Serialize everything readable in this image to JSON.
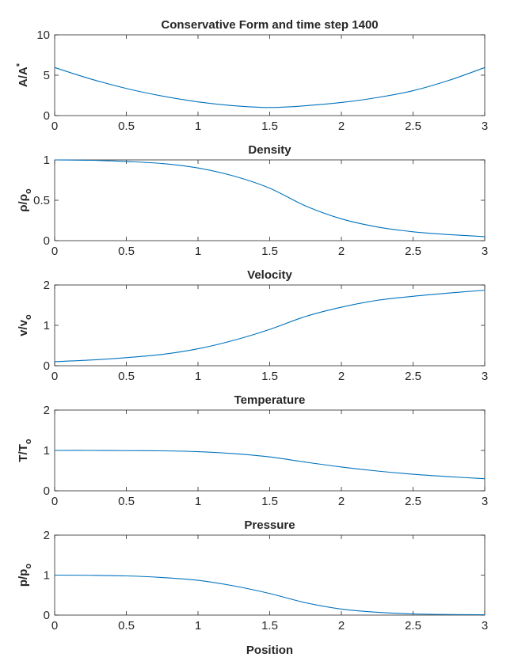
{
  "figure": {
    "line_color": "#0072BD",
    "axis_color": "#262626"
  },
  "chart_data": [
    {
      "type": "line",
      "title": "Conservative Form and time step 1400",
      "ylabel_main": "A/A",
      "ylabel_sup": "*",
      "ylabel_sub": "",
      "xlabel": "",
      "xlim": [
        0,
        3
      ],
      "ylim": [
        0,
        10
      ],
      "xticks": [
        "0",
        "0.5",
        "1",
        "1.5",
        "2",
        "2.5",
        "3"
      ],
      "yticks": [
        "0",
        "5",
        "10"
      ],
      "x": [
        0,
        0.25,
        0.5,
        0.75,
        1,
        1.25,
        1.5,
        1.75,
        2,
        2.25,
        2.5,
        2.75,
        3
      ],
      "series": [
        {
          "values": [
            5.95,
            4.54,
            3.36,
            2.42,
            1.7,
            1.22,
            1.0,
            1.22,
            1.62,
            2.23,
            3.08,
            4.36,
            5.95
          ]
        }
      ]
    },
    {
      "type": "line",
      "title": "Density",
      "ylabel_main": "ρ/ρ",
      "ylabel_sup": "",
      "ylabel_sub": "o",
      "xlabel": "",
      "xlim": [
        0,
        3
      ],
      "ylim": [
        0,
        1
      ],
      "xticks": [
        "0",
        "0.5",
        "1",
        "1.5",
        "2",
        "2.5",
        "3"
      ],
      "yticks": [
        "0",
        "0.5",
        "1"
      ],
      "x": [
        0,
        0.25,
        0.5,
        0.75,
        1,
        1.25,
        1.5,
        1.75,
        2,
        2.25,
        2.5,
        2.75,
        3
      ],
      "series": [
        {
          "values": [
            1.0,
            0.995,
            0.98,
            0.955,
            0.9,
            0.8,
            0.65,
            0.43,
            0.27,
            0.17,
            0.11,
            0.075,
            0.05
          ]
        }
      ]
    },
    {
      "type": "line",
      "title": "Velocity",
      "ylabel_main": "v/v",
      "ylabel_sup": "",
      "ylabel_sub": "o",
      "xlabel": "",
      "xlim": [
        0,
        3
      ],
      "ylim": [
        0,
        2
      ],
      "xticks": [
        "0",
        "0.5",
        "1",
        "1.5",
        "2",
        "2.5",
        "3"
      ],
      "yticks": [
        "0",
        "1",
        "2"
      ],
      "x": [
        0,
        0.25,
        0.5,
        0.75,
        1,
        1.25,
        1.5,
        1.75,
        2,
        2.25,
        2.5,
        2.75,
        3
      ],
      "series": [
        {
          "values": [
            0.1,
            0.14,
            0.2,
            0.28,
            0.42,
            0.63,
            0.9,
            1.22,
            1.45,
            1.62,
            1.72,
            1.8,
            1.87
          ]
        }
      ]
    },
    {
      "type": "line",
      "title": "Temperature",
      "ylabel_main": "T/T",
      "ylabel_sup": "",
      "ylabel_sub": "o",
      "xlabel": "",
      "xlim": [
        0,
        3
      ],
      "ylim": [
        0,
        2
      ],
      "xticks": [
        "0",
        "0.5",
        "1",
        "1.5",
        "2",
        "2.5",
        "3"
      ],
      "yticks": [
        "0",
        "1",
        "2"
      ],
      "x": [
        0,
        0.25,
        0.5,
        0.75,
        1,
        1.25,
        1.5,
        1.75,
        2,
        2.25,
        2.5,
        2.75,
        3
      ],
      "series": [
        {
          "values": [
            1.0,
            1.0,
            0.995,
            0.99,
            0.97,
            0.92,
            0.84,
            0.71,
            0.59,
            0.49,
            0.41,
            0.35,
            0.3
          ]
        }
      ]
    },
    {
      "type": "line",
      "title": "Pressure",
      "ylabel_main": "p/p",
      "ylabel_sup": "",
      "ylabel_sub": "o",
      "xlabel": "Position",
      "xlim": [
        0,
        3
      ],
      "ylim": [
        0,
        2
      ],
      "xticks": [
        "0",
        "0.5",
        "1",
        "1.5",
        "2",
        "2.5",
        "3"
      ],
      "yticks": [
        "0",
        "1",
        "2"
      ],
      "x": [
        0,
        0.25,
        0.5,
        0.75,
        1,
        1.25,
        1.5,
        1.75,
        2,
        2.25,
        2.5,
        2.75,
        3
      ],
      "series": [
        {
          "values": [
            1.0,
            0.995,
            0.98,
            0.94,
            0.87,
            0.73,
            0.54,
            0.31,
            0.15,
            0.07,
            0.03,
            0.015,
            0.01
          ]
        }
      ]
    }
  ]
}
